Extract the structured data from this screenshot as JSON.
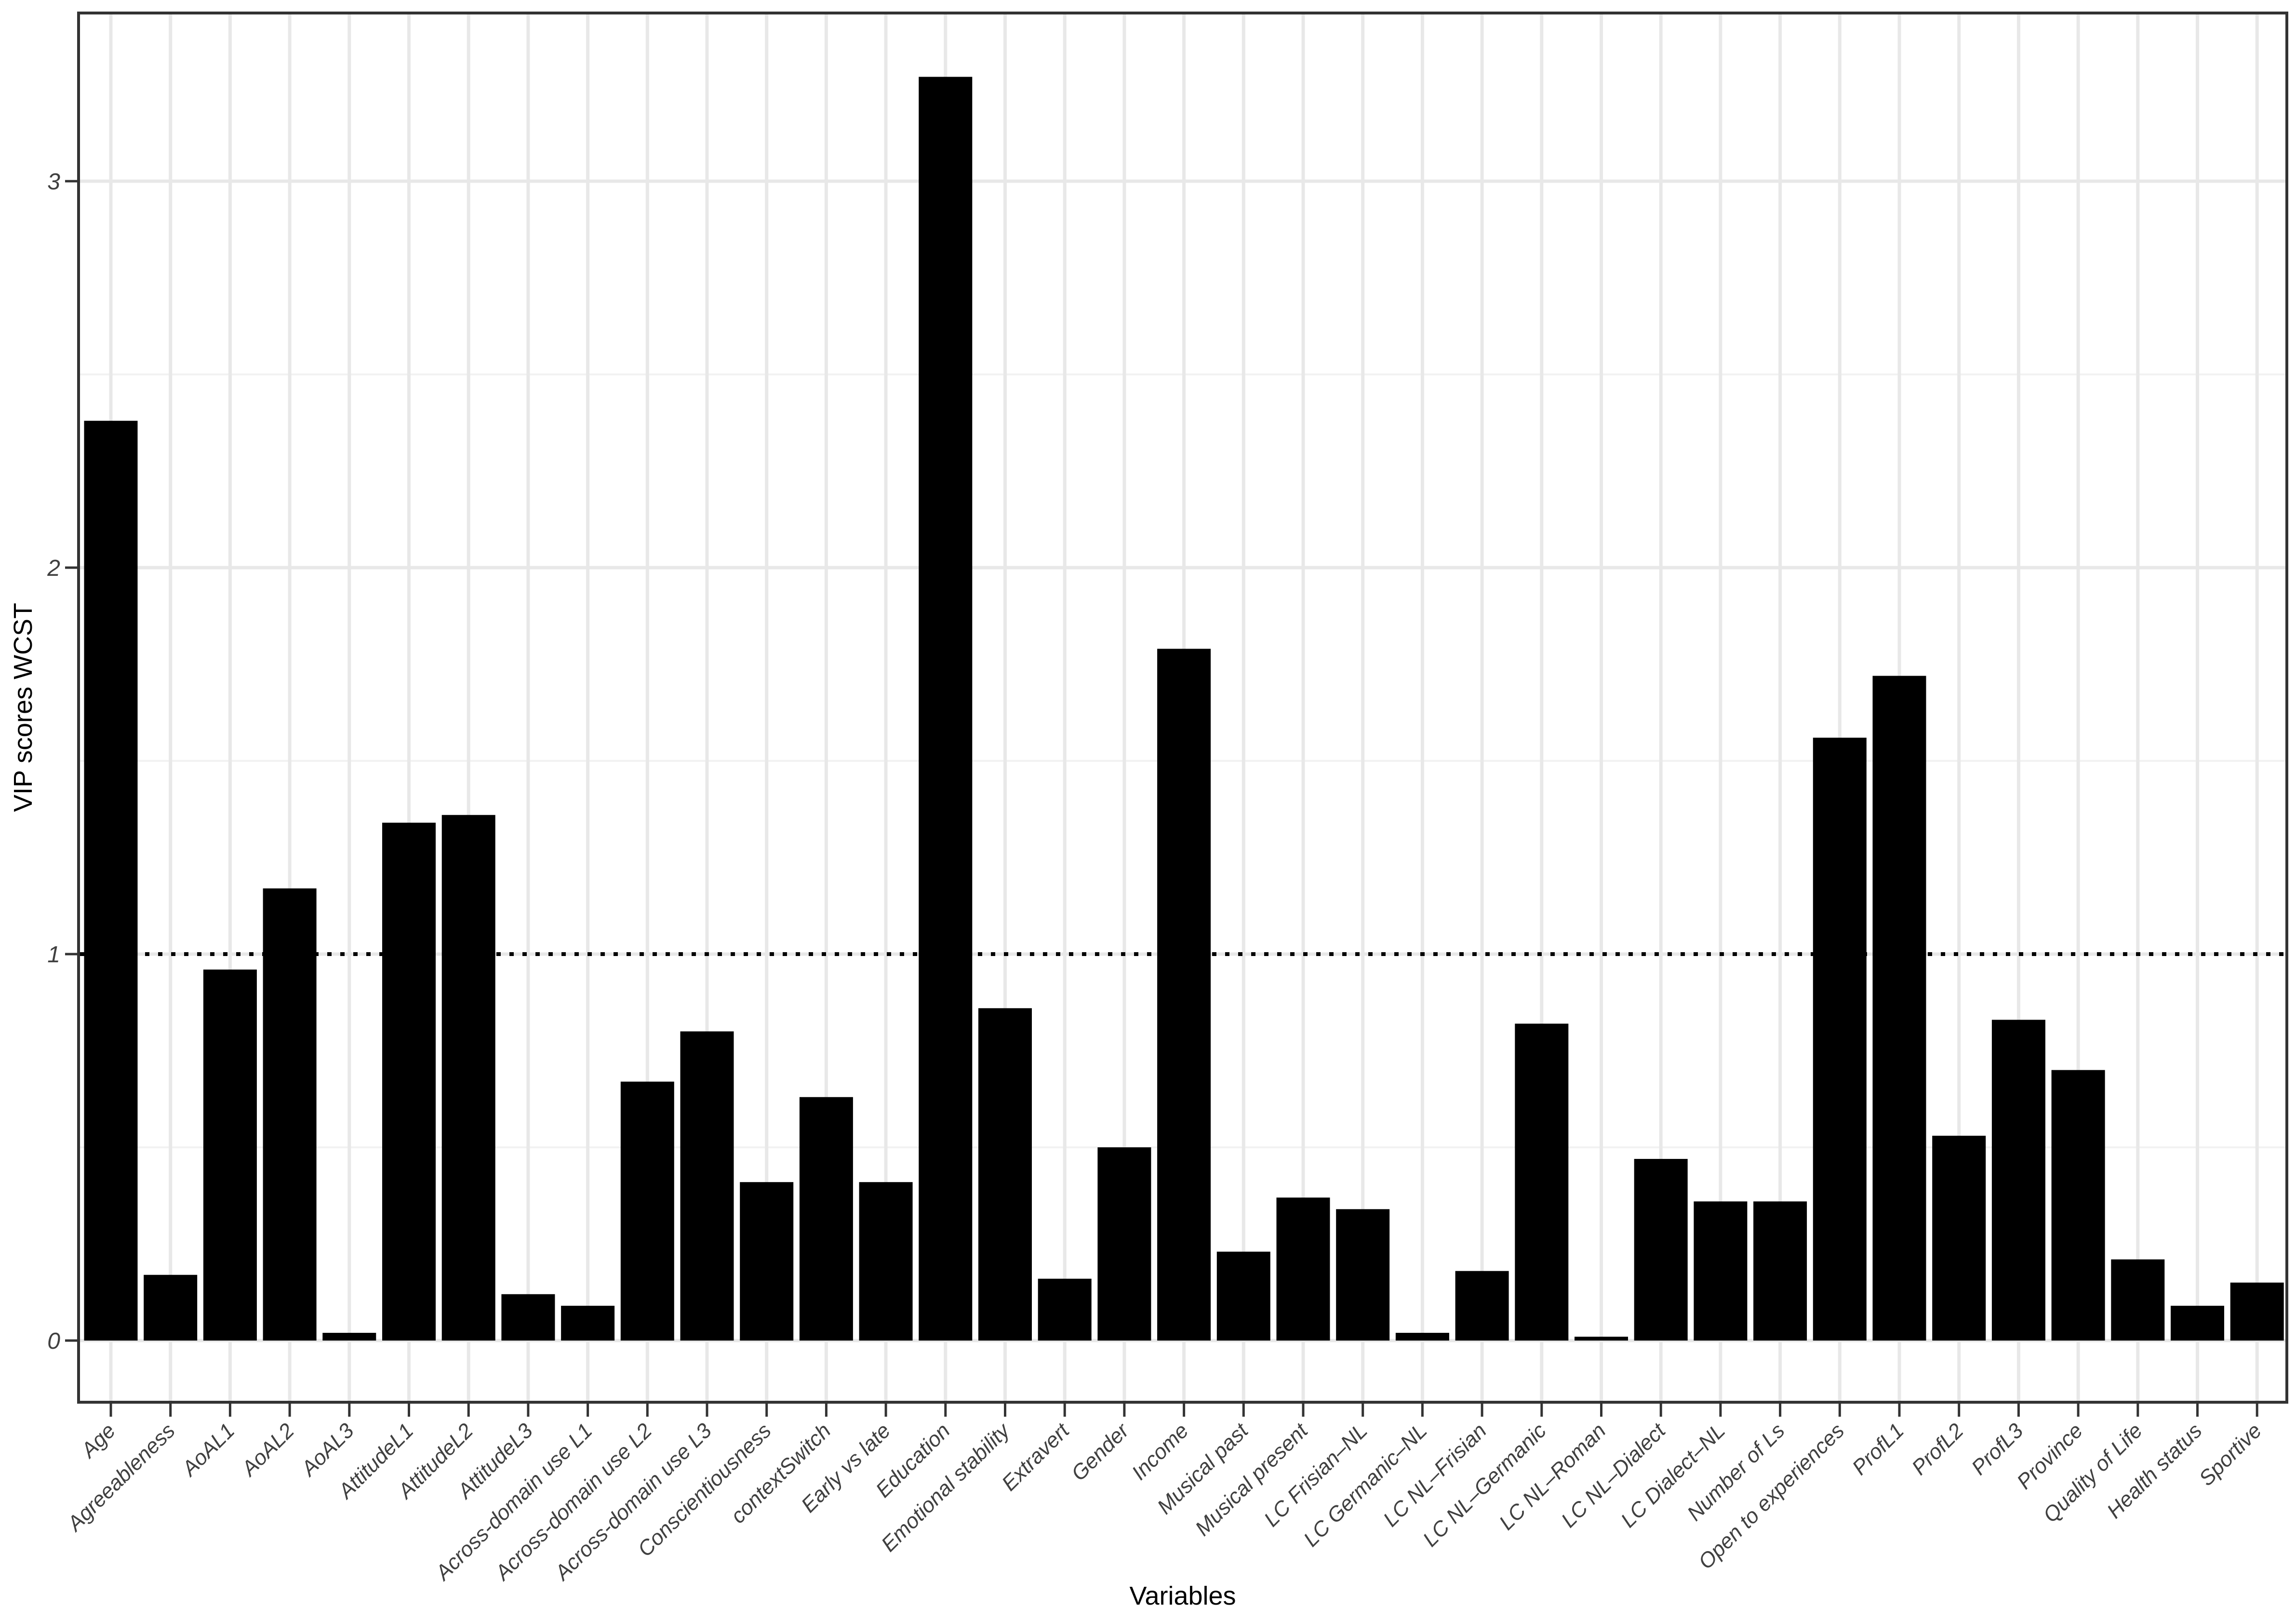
{
  "figure": {
    "background_color": "#ffffff",
    "panel_border_color": "#333333",
    "grid_major_color": "#e8e8e8",
    "grid_minor_color": "#f2f2f2",
    "tick_color": "#333333",
    "axis_text_color": "#404040",
    "bar_color": "#000000",
    "reference_line_color": "#000000"
  },
  "chart_data": {
    "type": "bar",
    "title": "",
    "xlabel": "Variables",
    "ylabel": "VIP scores WCST",
    "ylim": [
      -0.16,
      3.43
    ],
    "y_major_ticks": [
      0,
      1,
      2,
      3
    ],
    "y_minor_gridlines": [
      0.5,
      1.5,
      2.5
    ],
    "grid": true,
    "legend_position": "none",
    "reference_line": {
      "y": 1,
      "linetype": "dotted",
      "color": "#000000"
    },
    "categories": [
      "Age",
      "Agreeableness",
      "AoAL1",
      "AoAL2",
      "AoAL3",
      "AttitudeL1",
      "AttitudeL2",
      "AttitudeL3",
      "Across-domain use L1",
      "Across-domain use L2",
      "Across-domain use L3",
      "Conscientiousness",
      "contextSwitch",
      "Early vs late",
      "Education",
      "Emotional stability",
      "Extravert",
      "Gender",
      "Income",
      "Musical past",
      "Musical present",
      "LC Frisian–NL",
      "LC Germanic–NL",
      "LC NL–Frisian",
      "LC NL–Germanic",
      "LC NL–Roman",
      "LC NL–Dialect",
      "LC Dialect–NL",
      "Number of Ls",
      "Open to experiences",
      "ProfL1",
      "ProfL2",
      "ProfL3",
      "Province",
      "Quality of Life",
      "Health status",
      "Sportive"
    ],
    "values": [
      2.38,
      0.17,
      0.96,
      1.17,
      0.02,
      1.34,
      1.36,
      0.12,
      0.09,
      0.67,
      0.8,
      0.41,
      0.63,
      0.41,
      3.27,
      0.86,
      0.16,
      0.5,
      1.79,
      0.23,
      0.37,
      0.34,
      0.02,
      0.18,
      0.82,
      0.01,
      0.47,
      0.36,
      0.36,
      1.56,
      1.72,
      0.53,
      0.83,
      0.7,
      0.21,
      0.09,
      0.15
    ]
  }
}
